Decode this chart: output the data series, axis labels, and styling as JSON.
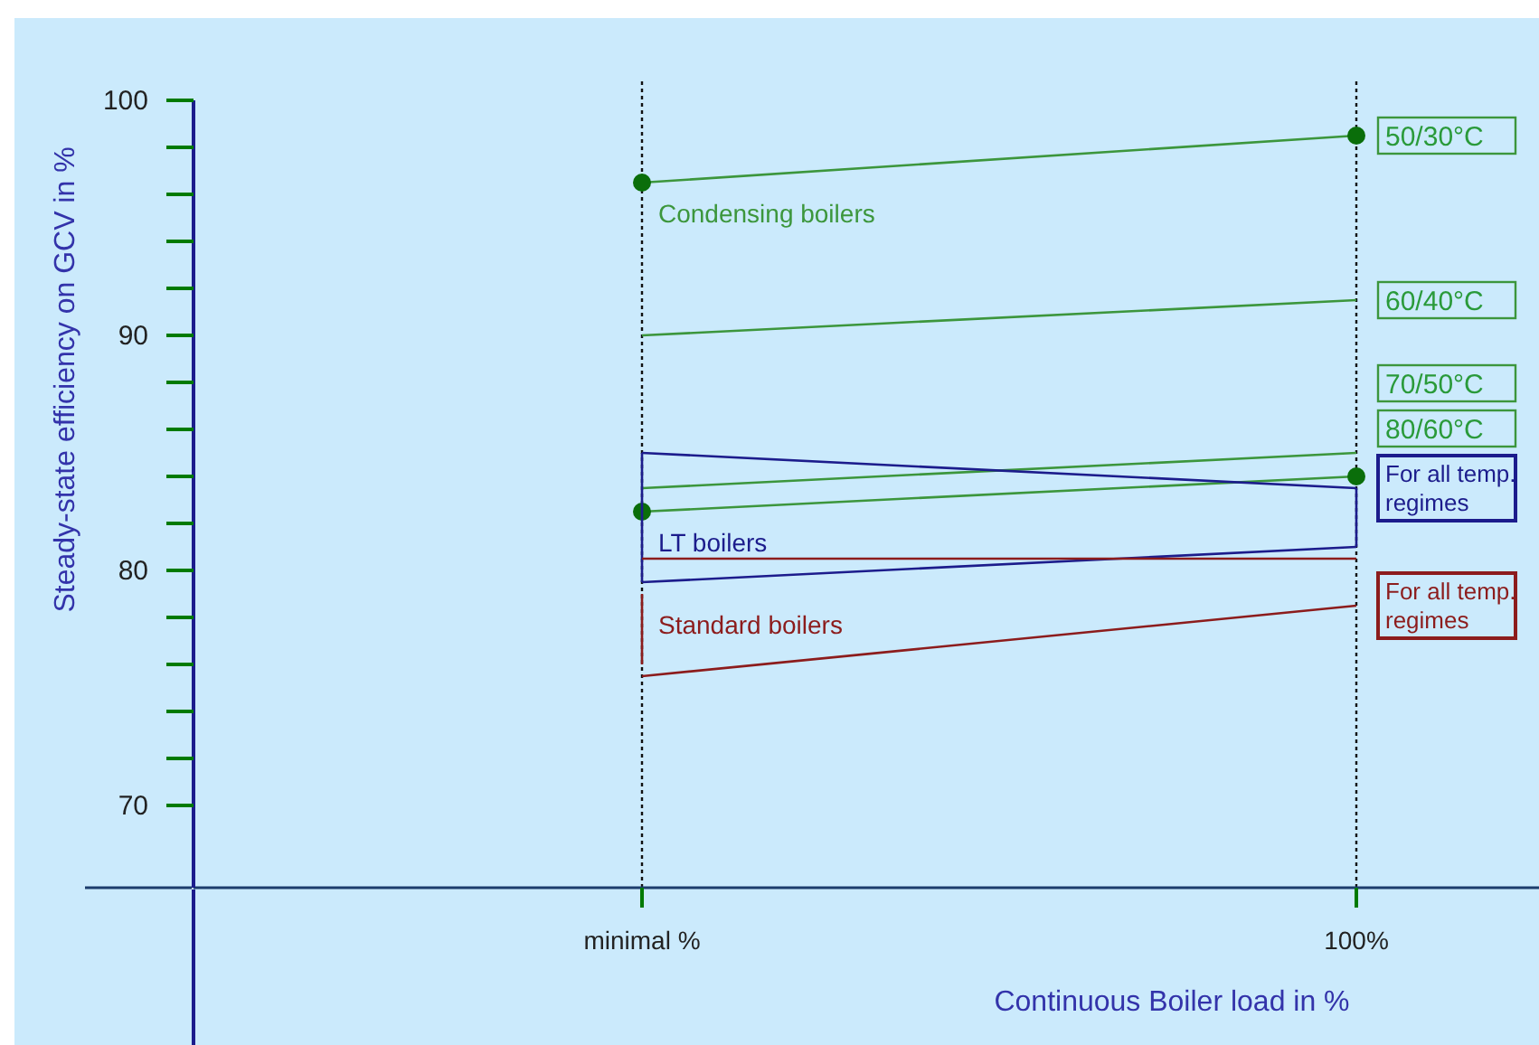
{
  "chart_data": {
    "type": "line",
    "xlabel": "Continuous Boiler load in %",
    "ylabel": "Steady-state efficiency on GCV in %",
    "categories": [
      "minimal %",
      "100%"
    ],
    "ylim": [
      66.5,
      100
    ],
    "yticks": [
      {
        "value": 70,
        "label": "70"
      },
      {
        "value": 72,
        "label": null
      },
      {
        "value": 74,
        "label": null
      },
      {
        "value": 76,
        "label": null
      },
      {
        "value": 78,
        "label": null
      },
      {
        "value": 80,
        "label": "80"
      },
      {
        "value": 82,
        "label": null
      },
      {
        "value": 84,
        "label": null
      },
      {
        "value": 86,
        "label": null
      },
      {
        "value": 88,
        "label": null
      },
      {
        "value": 90,
        "label": "90"
      },
      {
        "value": 92,
        "label": null
      },
      {
        "value": 94,
        "label": null
      },
      {
        "value": 96,
        "label": null
      },
      {
        "value": 98,
        "label": null
      },
      {
        "value": 100,
        "label": "100"
      }
    ],
    "grid": "x",
    "legend": "right",
    "line_style": "solid",
    "series": [
      {
        "name": "50/30°C",
        "color": "#3c963c",
        "values": [
          96.5,
          98.5
        ],
        "marker": "circle"
      },
      {
        "name": "60/40°C",
        "color": "#3c963c",
        "values": [
          90,
          91.5
        ],
        "marker": "none"
      },
      {
        "name": "70/50°C",
        "color": "#3c963c",
        "values": [
          83.5,
          85
        ],
        "marker": "none"
      },
      {
        "name": "80/60°C",
        "color": "#3c963c",
        "values": [
          82.5,
          84
        ],
        "marker": "circle"
      },
      {
        "name": "For all temp. regimes",
        "color": "#1c1c8c",
        "values": [
          85,
          83.5
        ],
        "errors": [
          [
            79.5,
            85
          ],
          [
            81,
            83.5
          ]
        ],
        "marker": "none"
      },
      {
        "color": "#1c1c8c",
        "values": [
          79.5,
          81
        ],
        "marker": "none"
      },
      {
        "name": "For all temp. regimes",
        "color": "#8c1c1c",
        "values": [
          75.5,
          78.5
        ],
        "errors": [
          [
            76,
            79
          ],
          null
        ],
        "marker": "none"
      },
      {
        "color": "#8c1c1c",
        "values": [
          80.5,
          80.5
        ],
        "marker": "none"
      }
    ],
    "annotations": [
      "Condensing boilers",
      {
        "text": "LT boilers",
        "x": "minimal %",
        "y": 81.2
      },
      {
        "text": "Standard boilers",
        "x": "minimal %",
        "y": 77.7
      }
    ]
  }
}
